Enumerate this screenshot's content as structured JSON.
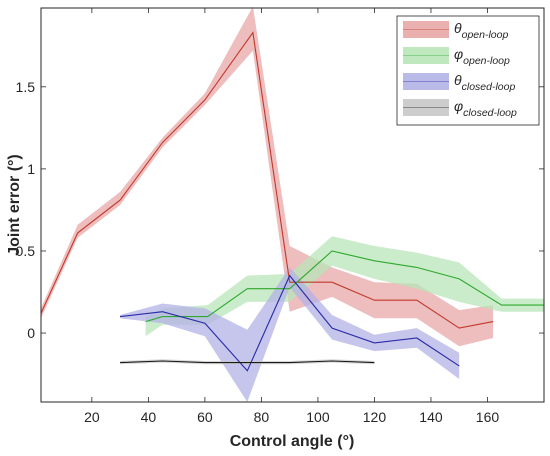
{
  "chart_data": {
    "type": "line",
    "title": "",
    "xlabel": "Control angle (°)",
    "ylabel": "Joint error (°)",
    "xlim": [
      2,
      180
    ],
    "ylim": [
      -0.42,
      1.98
    ],
    "xticks": [
      20,
      40,
      60,
      80,
      100,
      120,
      140,
      160
    ],
    "yticks": [
      0,
      0.5,
      1,
      1.5
    ],
    "ytick_labels": [
      "0",
      "0.5",
      "1",
      "1.5"
    ],
    "grid": false,
    "legend_position": "top-right",
    "series": [
      {
        "name": "θ",
        "subscript": "open-loop",
        "color": "#c0392b",
        "band_color": "#e8a7a7",
        "x": [
          2,
          15,
          30,
          45,
          60,
          77,
          90,
          105,
          120,
          135,
          150,
          162
        ],
        "y": [
          0.12,
          0.61,
          0.81,
          1.16,
          1.42,
          1.83,
          0.31,
          0.31,
          0.2,
          0.2,
          0.03,
          0.07
        ],
        "lower": [
          0.09,
          0.58,
          0.78,
          1.13,
          1.39,
          1.72,
          0.13,
          0.22,
          0.09,
          0.09,
          -0.08,
          -0.03
        ],
        "upper": [
          0.15,
          0.66,
          0.86,
          1.19,
          1.46,
          1.99,
          0.53,
          0.4,
          0.31,
          0.3,
          0.14,
          0.17
        ]
      },
      {
        "name": "φ",
        "subscript": "open-loop",
        "color": "#2ea82e",
        "band_color": "#b8e6b8",
        "x": [
          39,
          45,
          61,
          75,
          90,
          105,
          120,
          135,
          150,
          165,
          180
        ],
        "y": [
          0.07,
          0.1,
          0.1,
          0.27,
          0.27,
          0.5,
          0.44,
          0.4,
          0.33,
          0.17,
          0.17
        ],
        "lower": [
          -0.02,
          0.05,
          0.05,
          0.19,
          0.19,
          0.41,
          0.33,
          0.27,
          0.19,
          0.13,
          0.13
        ],
        "upper": [
          0.1,
          0.15,
          0.17,
          0.35,
          0.36,
          0.59,
          0.53,
          0.49,
          0.43,
          0.21,
          0.21
        ]
      },
      {
        "name": "θ",
        "subscript": "closed-loop",
        "color": "#2a2aa8",
        "band_color": "#b3b3e6",
        "x": [
          30,
          45,
          60,
          75,
          90,
          105,
          120,
          135,
          150
        ],
        "y": [
          0.1,
          0.13,
          0.06,
          -0.23,
          0.35,
          0.03,
          -0.06,
          -0.03,
          -0.2
        ],
        "lower": [
          0.09,
          0.06,
          -0.02,
          -0.42,
          0.28,
          -0.04,
          -0.11,
          -0.09,
          -0.28
        ],
        "upper": [
          0.11,
          0.18,
          0.15,
          0.02,
          0.4,
          0.11,
          -0.01,
          0.03,
          -0.12
        ]
      },
      {
        "name": "φ",
        "subscript": "closed-loop",
        "color": "#1a1a1a",
        "band_color": "#c8c8c8",
        "x": [
          30,
          45,
          60,
          75,
          90,
          105,
          120
        ],
        "y": [
          -0.18,
          -0.17,
          -0.18,
          -0.18,
          -0.18,
          -0.17,
          -0.18
        ],
        "lower": [
          -0.19,
          -0.18,
          -0.19,
          -0.19,
          -0.19,
          -0.18,
          -0.19
        ],
        "upper": [
          -0.17,
          -0.16,
          -0.17,
          -0.17,
          -0.17,
          -0.16,
          -0.17
        ]
      }
    ]
  }
}
